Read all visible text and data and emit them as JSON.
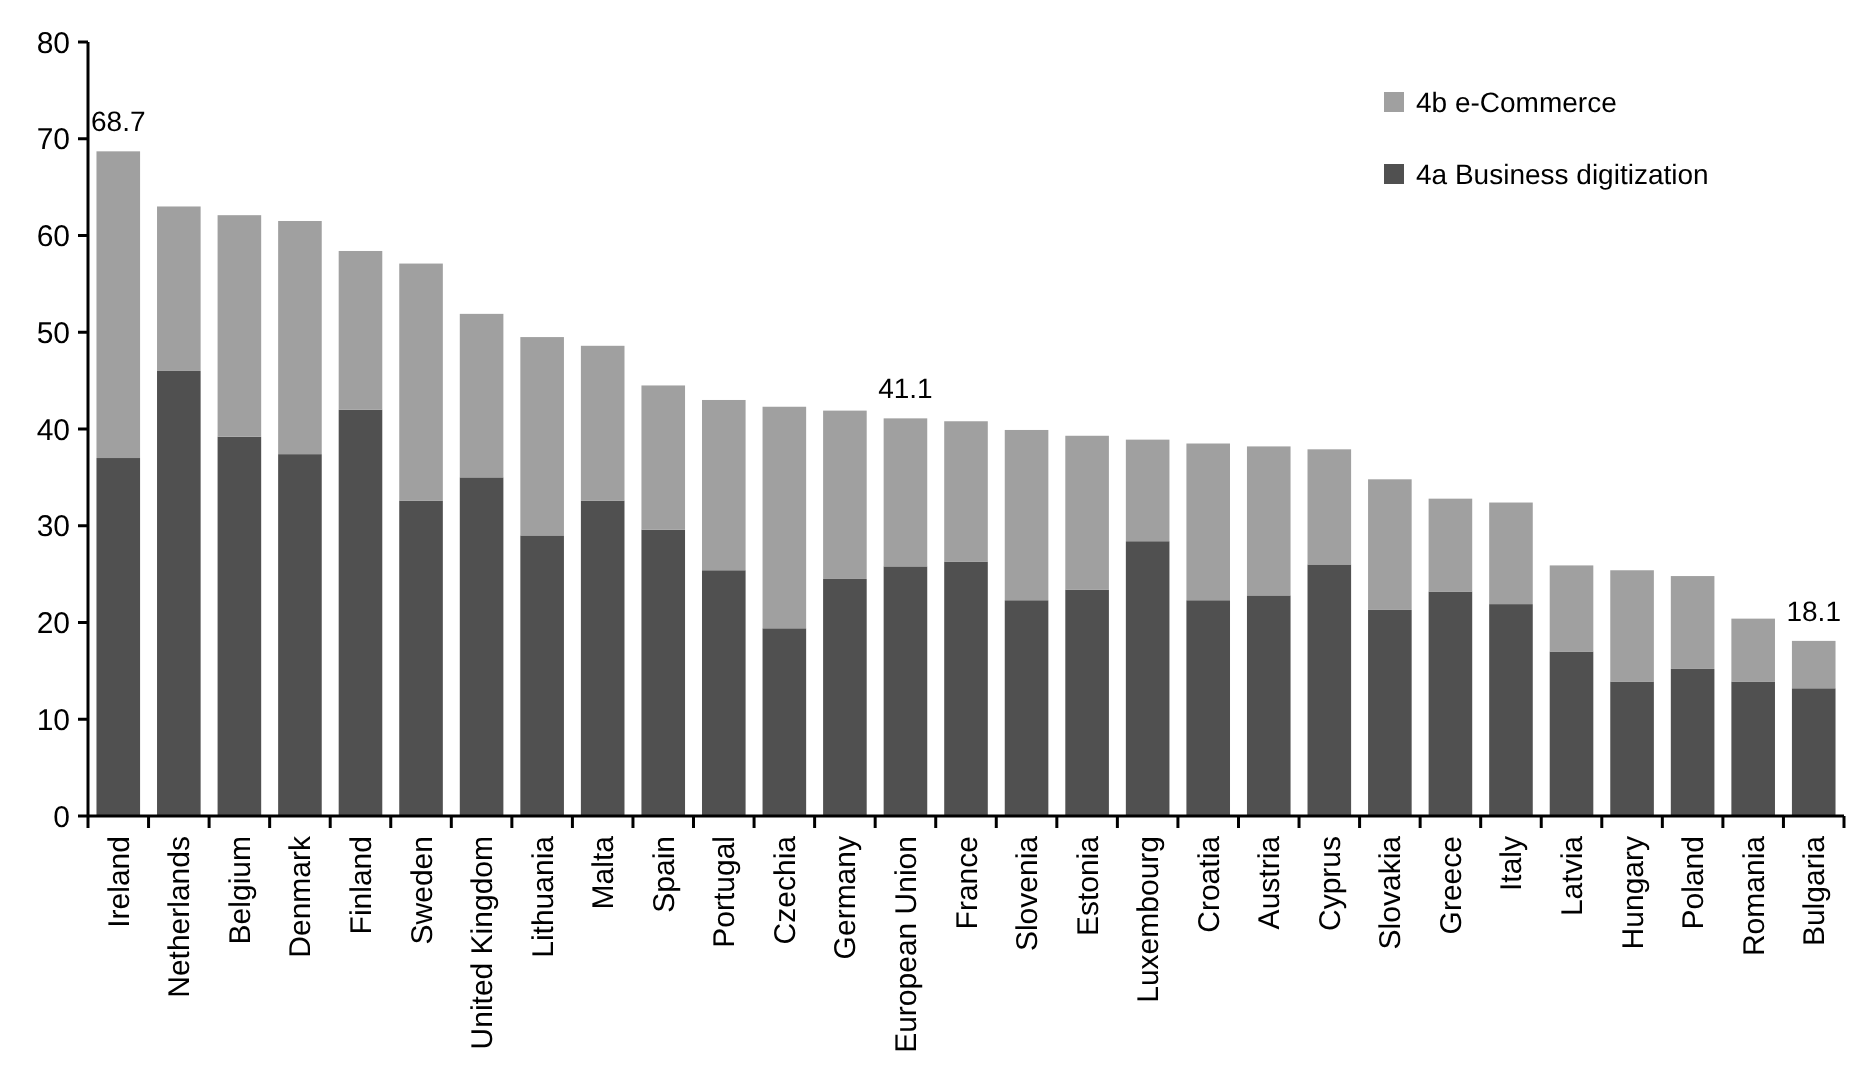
{
  "chart_data": {
    "type": "bar",
    "stacked": true,
    "categories": [
      "Ireland",
      "Netherlands",
      "Belgium",
      "Denmark",
      "Finland",
      "Sweden",
      "United Kingdom",
      "Lithuania",
      "Malta",
      "Spain",
      "Portugal",
      "Czechia",
      "Germany",
      "European Union",
      "France",
      "Slovenia",
      "Estonia",
      "Luxembourg",
      "Croatia",
      "Austria",
      "Cyprus",
      "Slovakia",
      "Greece",
      "Italy",
      "Latvia",
      "Hungary",
      "Poland",
      "Romania",
      "Bulgaria"
    ],
    "series": [
      {
        "name": "4a Business digitization",
        "color": "#505050",
        "values": [
          37,
          46,
          39.2,
          37.4,
          42,
          32.6,
          35,
          29,
          32.6,
          29.6,
          25.4,
          19.4,
          24.5,
          25.8,
          26.3,
          22.3,
          23.4,
          28.4,
          22.3,
          22.8,
          26,
          21.3,
          23.2,
          21.9,
          17,
          13.9,
          15.2,
          13.9,
          13.2
        ]
      },
      {
        "name": "4b e-Commerce",
        "color": "#a0a0a0",
        "values": [
          31.7,
          17,
          22.9,
          24.1,
          16.4,
          24.5,
          16.9,
          20.5,
          16,
          14.9,
          17.6,
          22.9,
          17.4,
          15.3,
          14.5,
          17.6,
          15.9,
          10.5,
          16.2,
          15.4,
          11.9,
          13.5,
          9.6,
          10.5,
          8.9,
          11.5,
          9.6,
          6.5,
          4.9
        ]
      }
    ],
    "totals": [
      "68.7",
      null,
      null,
      null,
      null,
      null,
      null,
      null,
      null,
      null,
      null,
      null,
      null,
      "41.1",
      null,
      null,
      null,
      null,
      null,
      null,
      null,
      null,
      null,
      null,
      null,
      null,
      null,
      null,
      "18.1"
    ],
    "ylim": [
      0,
      80
    ],
    "yticks": [
      0,
      10,
      20,
      30,
      40,
      50,
      60,
      70,
      80
    ],
    "grid": false,
    "legend": "top right"
  }
}
